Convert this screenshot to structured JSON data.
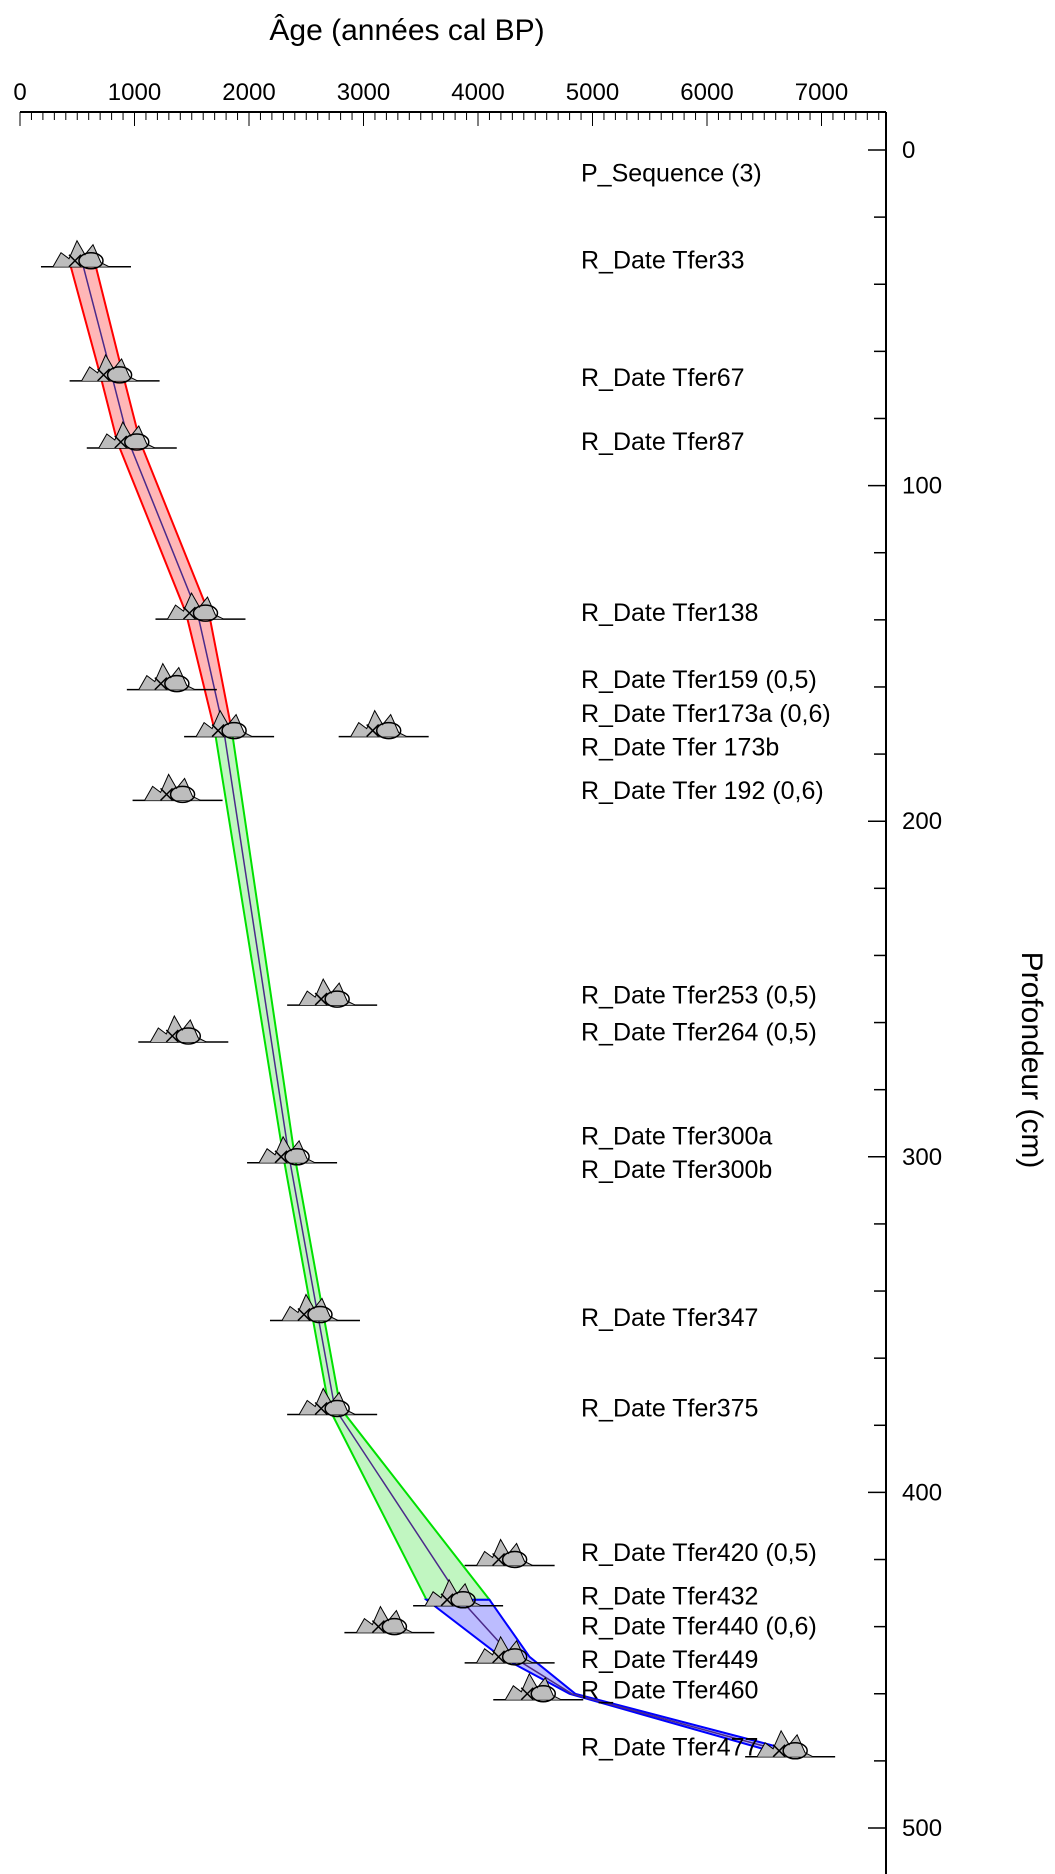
{
  "chart_data": {
    "type": "line",
    "xlabel": "Âge (années cal BP)",
    "ylabel": "Profondeur (cm)",
    "x_range": [
      0,
      7500
    ],
    "y_range": [
      0,
      510
    ],
    "x_ticks": [
      0,
      1000,
      2000,
      3000,
      4000,
      5000,
      6000,
      7000
    ],
    "y_ticks": [
      0,
      100,
      200,
      300,
      400,
      500
    ],
    "grid": false,
    "labels": [
      {
        "text": "P_Sequence (3)",
        "depth": 7
      },
      {
        "text": "R_Date Tfer33",
        "depth": 33
      },
      {
        "text": "R_Date Tfer67",
        "depth": 68
      },
      {
        "text": "R_Date Tfer87",
        "depth": 87
      },
      {
        "text": "R_Date Tfer138",
        "depth": 138
      },
      {
        "text": "R_Date Tfer159 (0,5)",
        "depth": 158
      },
      {
        "text": "R_Date Tfer173a (0,6)",
        "depth": 168
      },
      {
        "text": "R_Date Tfer 173b",
        "depth": 178
      },
      {
        "text": "R_Date Tfer 192 (0,6)",
        "depth": 191
      },
      {
        "text": "R_Date Tfer253 (0,5)",
        "depth": 252
      },
      {
        "text": "R_Date Tfer264 (0,5)",
        "depth": 263
      },
      {
        "text": "R_Date Tfer300a",
        "depth": 294
      },
      {
        "text": "R_Date Tfer300b",
        "depth": 304
      },
      {
        "text": "R_Date Tfer347",
        "depth": 348
      },
      {
        "text": "R_Date Tfer375",
        "depth": 375
      },
      {
        "text": "R_Date Tfer420 (0,5)",
        "depth": 418
      },
      {
        "text": "R_Date Tfer432",
        "depth": 431
      },
      {
        "text": "R_Date Tfer440 (0,6)",
        "depth": 440
      },
      {
        "text": "R_Date Tfer449",
        "depth": 450
      },
      {
        "text": "R_Date Tfer460",
        "depth": 459
      },
      {
        "text": "R_Date Tfer477",
        "depth": 476
      }
    ],
    "dates": [
      {
        "depth": 33,
        "age": 550
      },
      {
        "depth": 67,
        "age": 800
      },
      {
        "depth": 87,
        "age": 950
      },
      {
        "depth": 138,
        "age": 1550
      },
      {
        "depth": 159,
        "age": 1300
      },
      {
        "depth": 173,
        "age": 1800
      },
      {
        "depth": 173,
        "age": 3150
      },
      {
        "depth": 192,
        "age": 1350
      },
      {
        "depth": 253,
        "age": 2700
      },
      {
        "depth": 264,
        "age": 1400
      },
      {
        "depth": 300,
        "age": 2350
      },
      {
        "depth": 347,
        "age": 2550
      },
      {
        "depth": 375,
        "age": 2700
      },
      {
        "depth": 420,
        "age": 4250
      },
      {
        "depth": 432,
        "age": 3800
      },
      {
        "depth": 440,
        "age": 3200
      },
      {
        "depth": 449,
        "age": 4250
      },
      {
        "depth": 460,
        "age": 4500
      },
      {
        "depth": 477,
        "age": 6700
      }
    ],
    "series": [
      {
        "color": "#ff0000",
        "fill": "#ffaaaa",
        "depth": [
          33,
          67,
          87,
          138,
          173
        ],
        "lower": [
          430,
          700,
          850,
          1450,
          1700
        ],
        "upper": [
          650,
          900,
          1050,
          1650,
          1850
        ],
        "median": [
          540,
          800,
          950,
          1550,
          1780
        ]
      },
      {
        "color": "#00e000",
        "fill": "#b6f5b6",
        "depth": [
          173,
          300,
          347,
          375,
          432
        ],
        "lower": [
          1700,
          2300,
          2550,
          2700,
          3550
        ],
        "upper": [
          1850,
          2400,
          2650,
          2800,
          4100
        ],
        "median": [
          1780,
          2350,
          2600,
          2750,
          3850
        ]
      },
      {
        "color": "#0000ff",
        "fill": "#b0b0ff",
        "depth": [
          432,
          449,
          460,
          477
        ],
        "lower": [
          3550,
          4200,
          4800,
          6550
        ],
        "upper": [
          4100,
          4450,
          4850,
          6750
        ],
        "median": [
          3850,
          4300,
          4820,
          6650
        ]
      }
    ]
  }
}
